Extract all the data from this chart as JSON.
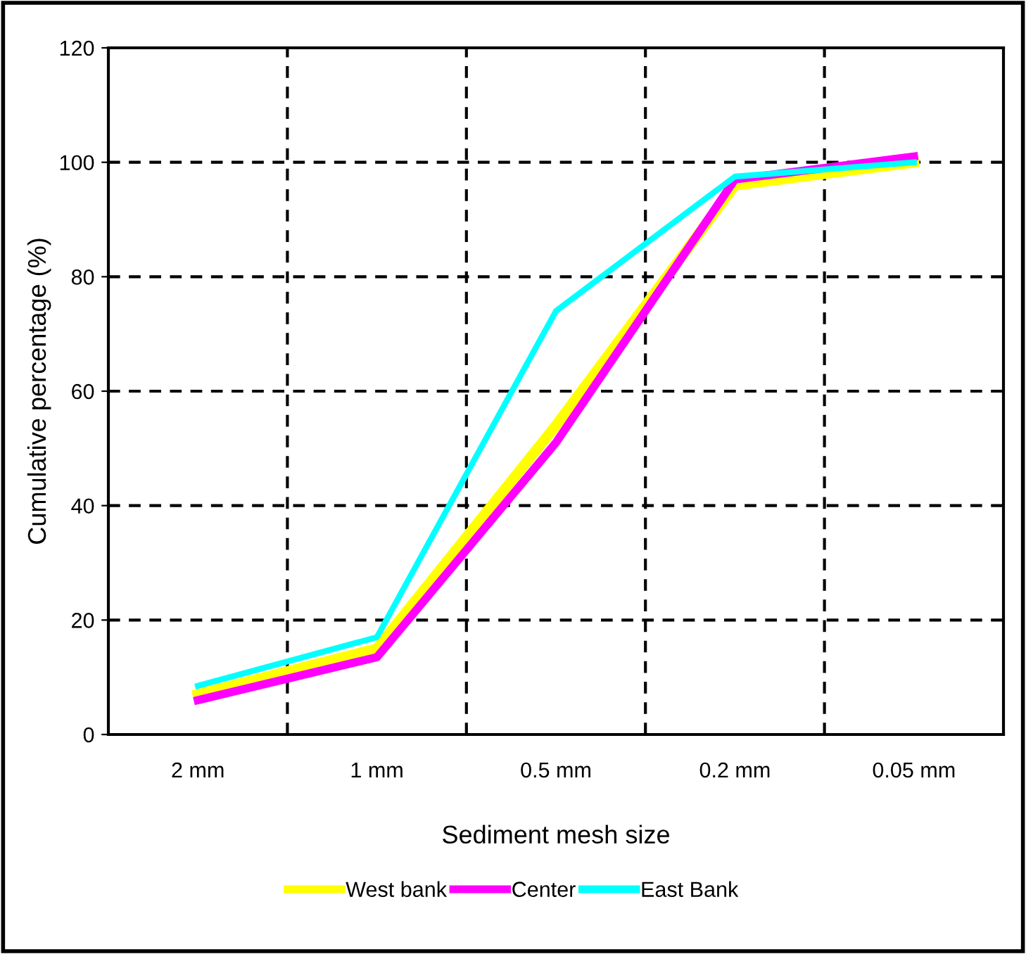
{
  "chart_data": {
    "type": "line",
    "xlabel": "Sediment mesh size",
    "ylabel": "Cumulative percentage (%)",
    "categories": [
      "2 mm",
      "1 mm",
      "0.5 mm",
      "0.2 mm",
      "0.05 mm"
    ],
    "series": [
      {
        "name": "West bank",
        "color": "#ffff00",
        "values": [
          7,
          15,
          54,
          96,
          100
        ]
      },
      {
        "name": "Center",
        "color": "#ff00ff",
        "values": [
          6,
          13.5,
          51,
          97,
          101
        ]
      },
      {
        "name": "East Bank",
        "color": "#00ffff",
        "values": [
          8.5,
          17,
          74,
          97.5,
          100
        ]
      }
    ],
    "ylim": [
      0,
      120
    ],
    "yticks": [
      0,
      20,
      40,
      60,
      80,
      100,
      120
    ],
    "grid": true,
    "legend": "bottom",
    "line_style": "solid",
    "marker": "none"
  }
}
